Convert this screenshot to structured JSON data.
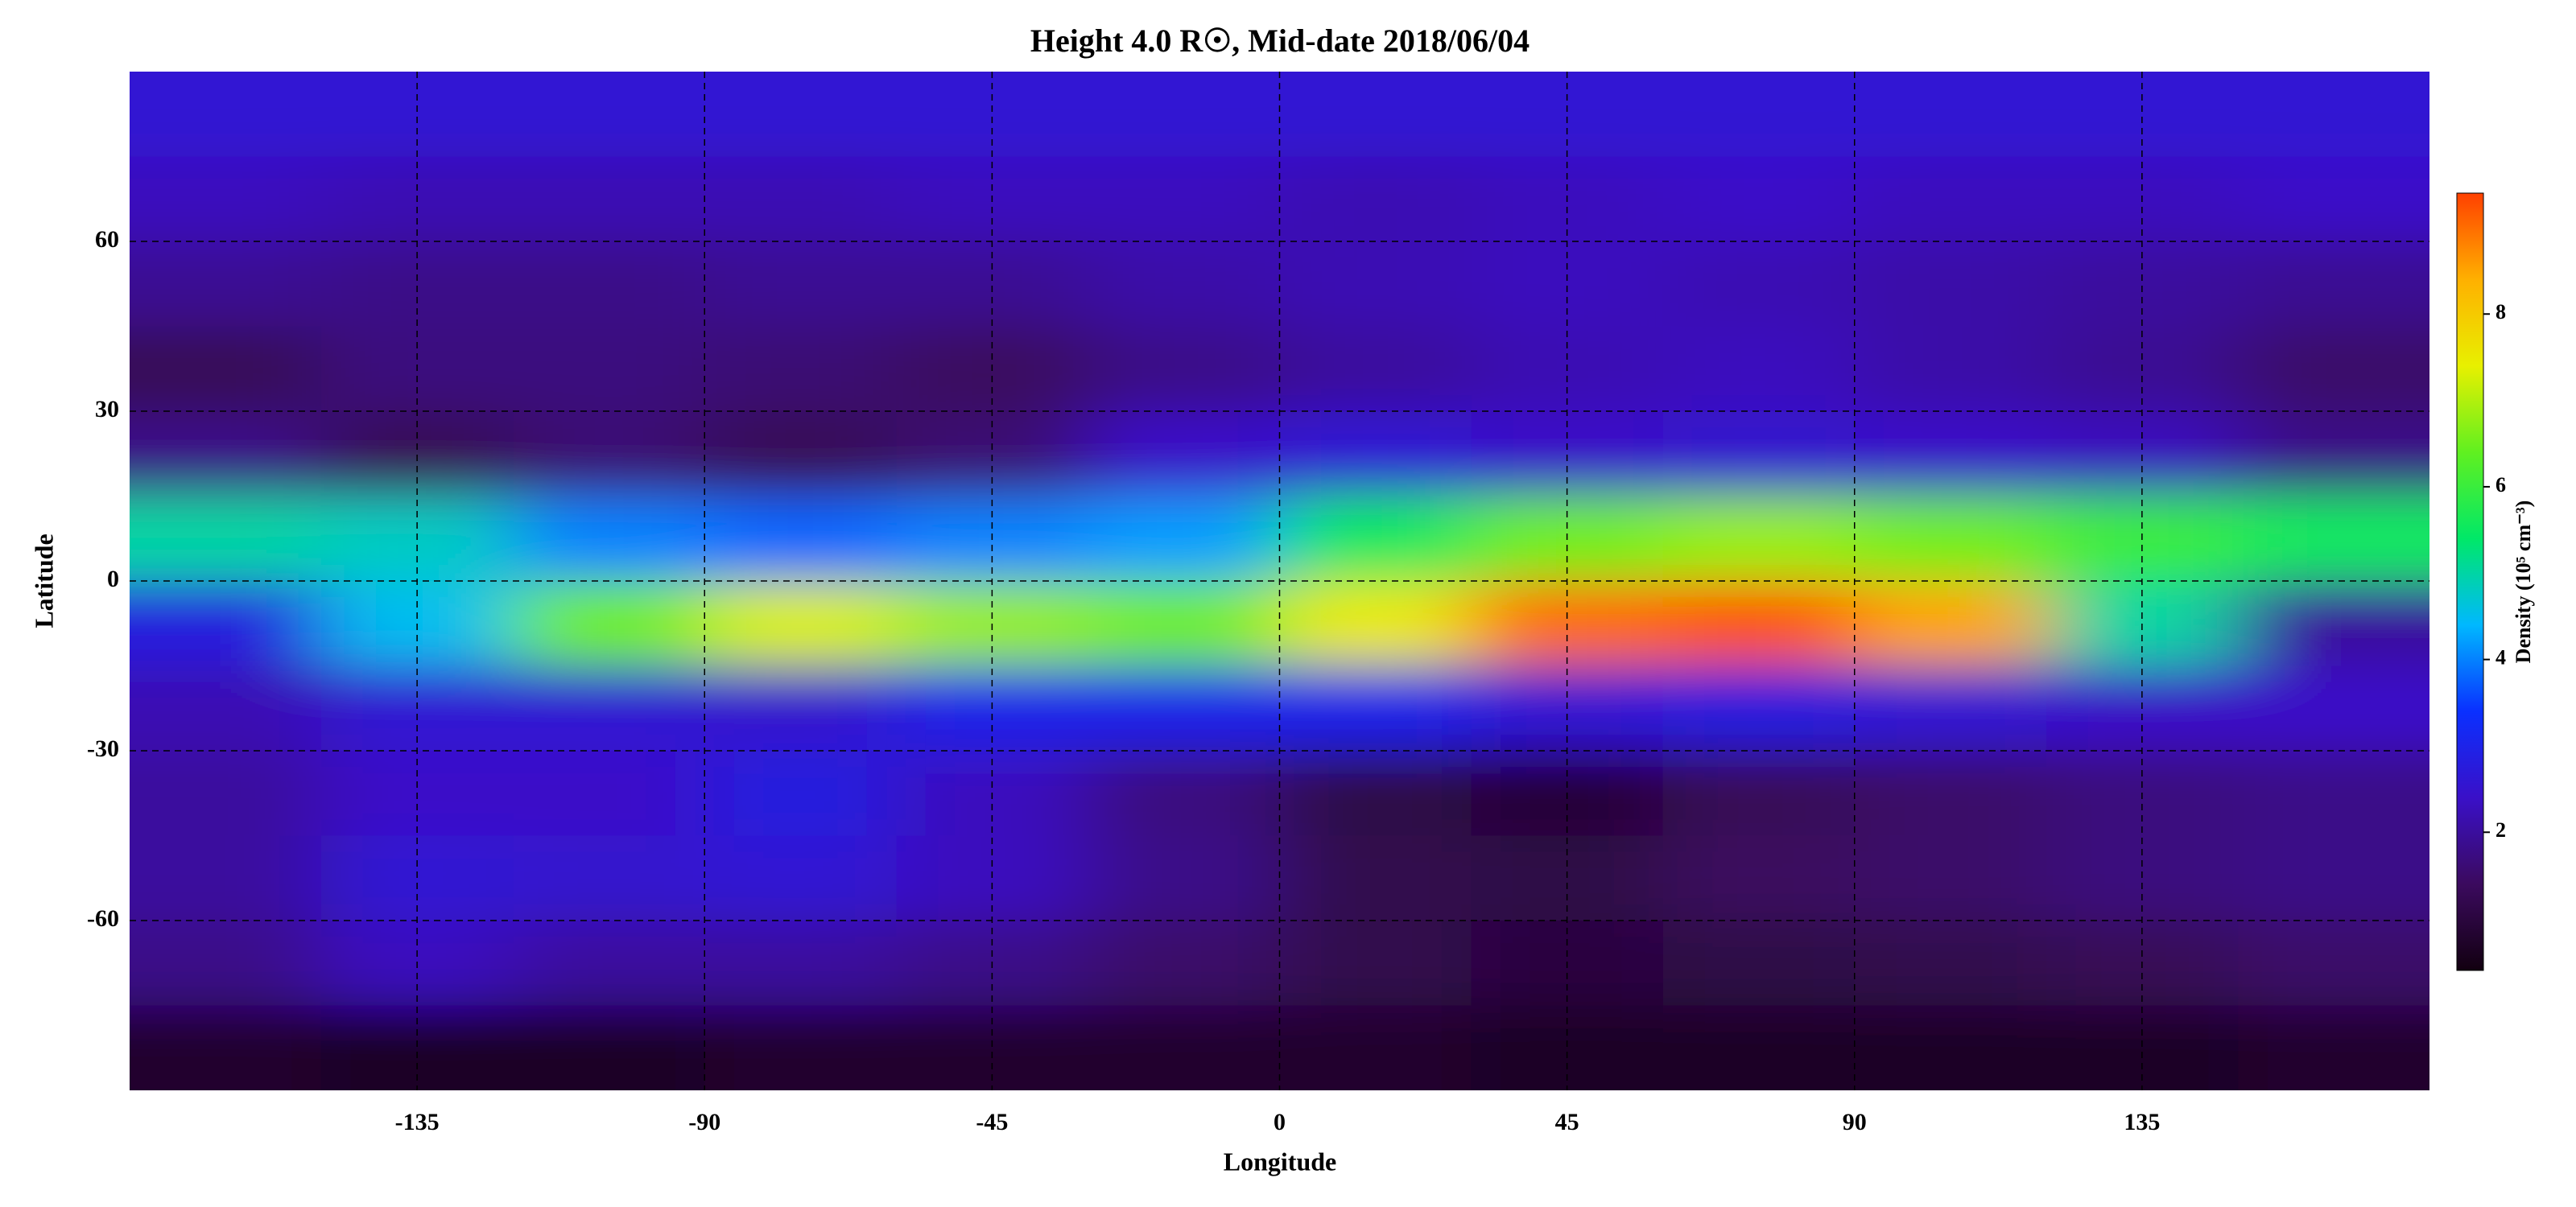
{
  "chart_data": {
    "type": "heatmap",
    "title": "Height 4.0 R☉, Mid-date 2018/06/04",
    "x_label": "Longitude",
    "y_label": "Latitude",
    "colorbar_label": "Density (10⁵ cm⁻³)",
    "x": [
      -165,
      -135,
      -105,
      -75,
      -45,
      -15,
      15,
      45,
      75,
      105,
      135,
      165
    ],
    "y": [
      82.5,
      67.5,
      52.5,
      37.5,
      22.5,
      7.5,
      -7.5,
      -22.5,
      -37.5,
      -52.5,
      -67.5,
      -82.5
    ],
    "z": [
      [
        2.6,
        2.6,
        2.6,
        2.6,
        2.6,
        2.6,
        2.6,
        2.6,
        2.6,
        2.6,
        2.6,
        2.6
      ],
      [
        2.3,
        2.2,
        2.2,
        2.2,
        2.3,
        2.3,
        2.2,
        2.3,
        2.4,
        2.3,
        2.3,
        2.4
      ],
      [
        1.9,
        1.8,
        1.8,
        1.9,
        1.9,
        2.1,
        2.2,
        2.3,
        2.2,
        2.1,
        2.0,
        1.9
      ],
      [
        1.3,
        1.7,
        1.7,
        1.6,
        1.4,
        1.8,
        2.0,
        2.2,
        2.3,
        2.1,
        1.9,
        1.5
      ],
      [
        1.8,
        1.3,
        1.6,
        1.3,
        1.6,
        2.4,
        2.6,
        2.4,
        2.5,
        2.4,
        2.3,
        1.8
      ],
      [
        5.0,
        4.8,
        4.0,
        3.8,
        4.0,
        4.2,
        5.5,
        6.5,
        6.8,
        6.5,
        6.0,
        5.5
      ],
      [
        2.8,
        4.5,
        6.5,
        7.3,
        6.8,
        6.5,
        7.5,
        9.0,
        9.2,
        8.5,
        5.0,
        2.0
      ],
      [
        2.2,
        2.6,
        2.6,
        2.5,
        3.0,
        3.0,
        3.0,
        2.6,
        2.8,
        2.6,
        2.4,
        2.4
      ],
      [
        2.0,
        2.4,
        2.4,
        2.8,
        2.3,
        1.7,
        1.1,
        0.9,
        1.3,
        1.5,
        1.7,
        1.8
      ],
      [
        2.0,
        2.6,
        2.5,
        2.6,
        2.3,
        1.8,
        1.2,
        1.1,
        1.4,
        1.5,
        1.7,
        1.8
      ],
      [
        1.8,
        2.3,
        2.0,
        2.0,
        1.8,
        1.5,
        1.2,
        1.0,
        1.1,
        1.2,
        1.3,
        1.5
      ],
      [
        0.8,
        0.7,
        0.7,
        0.8,
        0.8,
        0.8,
        0.8,
        0.7,
        0.7,
        0.7,
        0.7,
        0.8
      ]
    ],
    "xlim": [
      -180,
      180
    ],
    "ylim": [
      -90,
      90
    ],
    "xticks": [
      -135,
      -90,
      -45,
      0,
      45,
      90,
      135
    ],
    "yticks": [
      -60,
      -30,
      0,
      30,
      60
    ],
    "zlim": [
      0.4,
      9.4
    ],
    "zticks": [
      2,
      4,
      6,
      8
    ],
    "colormap": [
      "#120010",
      "#3b0a5e",
      "#3a10c8",
      "#0a30ff",
      "#00b8ff",
      "#00e868",
      "#60f020",
      "#e8f000",
      "#ffb000",
      "#ff4000"
    ],
    "grid": true
  }
}
